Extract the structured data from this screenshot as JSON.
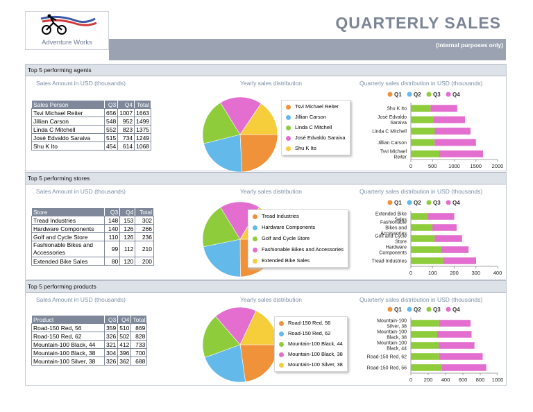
{
  "header": {
    "logo_text": "Adventure Works",
    "title": "QUARTERLY SALES",
    "subtitle": "(internal purposes only)"
  },
  "colors": {
    "q1": "#f0923a",
    "q2": "#62b9ea",
    "q3": "#8fcc3c",
    "q4": "#e36ed0",
    "pie": [
      "#f0923a",
      "#62b9ea",
      "#8fcc3c",
      "#e36ed0",
      "#f6cd3a"
    ]
  },
  "common": {
    "amount_label": "Sales Amount in USD (thousands)",
    "yearly_label": "Yearly sales distribution",
    "quarterly_label": "Quarterly sales distribution in USD (thousands)",
    "quarters": [
      "Q1",
      "Q2",
      "Q3",
      "Q4"
    ]
  },
  "sections": [
    {
      "title": "Top 5 performing agents",
      "table": {
        "headers": [
          "Sales Person",
          "Q3",
          "Q4",
          "Total"
        ],
        "rows": [
          [
            "Tsvi Michael Reiter",
            "656",
            "1007",
            "1663"
          ],
          [
            "Jillian Carson",
            "548",
            "952",
            "1499"
          ],
          [
            "Linda C Mitchell",
            "552",
            "823",
            "1375"
          ],
          [
            "José Edvaldo Saraiva",
            "515",
            "734",
            "1249"
          ],
          [
            "Shu K Ito",
            "454",
            "614",
            "1068"
          ]
        ]
      },
      "pie_legend": [
        "Tsvi Michael Reiter",
        "Jillian Carson",
        "Linda C Mitchell",
        "José Edvaldo Saraiva",
        "Shu K Ito"
      ]
    },
    {
      "title": "Top 5 performing stores",
      "table": {
        "headers": [
          "Store",
          "Q3",
          "Q4",
          "Total"
        ],
        "rows": [
          [
            "Tread Industries",
            "148",
            "153",
            "302"
          ],
          [
            "Hardware Components",
            "140",
            "126",
            "266"
          ],
          [
            "Golf and Cycle Store",
            "110",
            "126",
            "236"
          ],
          [
            "Fashionable Bikes and Accessories",
            "99",
            "112",
            "210"
          ],
          [
            "Extended Bike Sales",
            "80",
            "120",
            "200"
          ]
        ]
      },
      "pie_legend": [
        "Tread Industries",
        "Hardware Components",
        "Golf and Cycle Store",
        "Fashionable Bikes and Accessories",
        "Extended Bike Sales"
      ]
    },
    {
      "title": "Top 5 performing products",
      "table": {
        "headers": [
          "Product",
          "Q3",
          "Q4",
          "Total"
        ],
        "rows": [
          [
            "Road-150 Red, 56",
            "359",
            "510",
            "869"
          ],
          [
            "Road-150 Red, 62",
            "326",
            "502",
            "828"
          ],
          [
            "Mountain-100 Black, 44",
            "321",
            "412",
            "733"
          ],
          [
            "Mountain-100 Black, 38",
            "304",
            "396",
            "700"
          ],
          [
            "Mountain-100 Silver, 38",
            "326",
            "362",
            "688"
          ]
        ]
      },
      "pie_legend": [
        "Road-150 Red, 56",
        "Road-150 Red, 62",
        "Mountain-100 Black, 44",
        "Mountain-100 Black, 38",
        "Mountain-100 Silver, 38"
      ]
    }
  ],
  "chart_data": [
    {
      "type": "pie",
      "title": "Yearly sales distribution",
      "categories": [
        "Tsvi Michael Reiter",
        "Jillian Carson",
        "Linda C Mitchell",
        "José Edvaldo Saraiva",
        "Shu K Ito"
      ],
      "values": [
        1663,
        1499,
        1375,
        1249,
        1068
      ]
    },
    {
      "type": "bar",
      "orientation": "horizontal",
      "stacked": true,
      "title": "Quarterly sales distribution in USD (thousands)",
      "categories": [
        "Shu K Ito",
        "José Edvaldo Saraiva",
        "Linda C Mitchell",
        "Jillian Carson",
        "Tsvi Michael Reiter"
      ],
      "series": [
        {
          "name": "Q1",
          "values": [
            0,
            0,
            0,
            0,
            0
          ]
        },
        {
          "name": "Q2",
          "values": [
            0,
            0,
            0,
            0,
            0
          ]
        },
        {
          "name": "Q3",
          "values": [
            454,
            515,
            552,
            548,
            656
          ]
        },
        {
          "name": "Q4",
          "values": [
            614,
            734,
            823,
            952,
            1007
          ]
        }
      ],
      "xlim": [
        0,
        2000
      ],
      "xticks": [
        0,
        500,
        1000,
        1500,
        2000
      ],
      "legend": "top"
    },
    {
      "type": "pie",
      "title": "Yearly sales distribution",
      "categories": [
        "Tread Industries",
        "Hardware Components",
        "Golf and Cycle Store",
        "Fashionable Bikes and Accessories",
        "Extended Bike Sales"
      ],
      "values": [
        302,
        266,
        236,
        210,
        200
      ]
    },
    {
      "type": "bar",
      "orientation": "horizontal",
      "stacked": true,
      "title": "Quarterly sales distribution in USD (thousands)",
      "categories": [
        "Extended Bike Sales",
        "Fashionable Bikes and Accessories",
        "Golf and Cycle Store",
        "Hardware Components",
        "Tread Industries"
      ],
      "series": [
        {
          "name": "Q1",
          "values": [
            0,
            0,
            0,
            0,
            0
          ]
        },
        {
          "name": "Q2",
          "values": [
            0,
            0,
            0,
            0,
            0
          ]
        },
        {
          "name": "Q3",
          "values": [
            80,
            99,
            110,
            140,
            148
          ]
        },
        {
          "name": "Q4",
          "values": [
            120,
            112,
            126,
            126,
            153
          ]
        }
      ],
      "xlim": [
        0,
        400
      ],
      "xticks": [
        0,
        100,
        200,
        300,
        400
      ],
      "legend": "top"
    },
    {
      "type": "pie",
      "title": "Yearly sales distribution",
      "categories": [
        "Road-150 Red, 56",
        "Road-150 Red, 62",
        "Mountain-100 Black, 44",
        "Mountain-100 Black, 38",
        "Mountain-100 Silver, 38"
      ],
      "values": [
        869,
        828,
        733,
        700,
        688
      ]
    },
    {
      "type": "bar",
      "orientation": "horizontal",
      "stacked": true,
      "title": "Quarterly sales distribution in USD (thousands)",
      "categories": [
        "Mountain-100 Silver, 38",
        "Mountain-100 Black, 38",
        "Mountain-100 Black, 44",
        "Road-150 Red, 62",
        "Road-150 Red, 56"
      ],
      "series": [
        {
          "name": "Q1",
          "values": [
            0,
            0,
            0,
            0,
            0
          ]
        },
        {
          "name": "Q2",
          "values": [
            0,
            0,
            0,
            0,
            0
          ]
        },
        {
          "name": "Q3",
          "values": [
            326,
            304,
            321,
            326,
            359
          ]
        },
        {
          "name": "Q4",
          "values": [
            362,
            396,
            412,
            502,
            510
          ]
        }
      ],
      "xlim": [
        0,
        1000
      ],
      "xticks": [
        0,
        200,
        400,
        600,
        800,
        1000
      ],
      "legend": "top"
    }
  ]
}
